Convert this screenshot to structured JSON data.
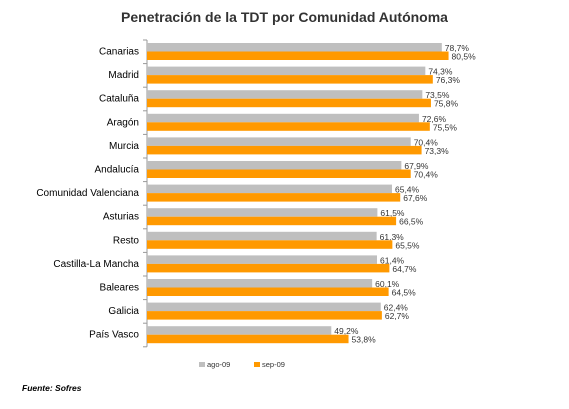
{
  "chart_data": {
    "type": "bar",
    "orientation": "horizontal",
    "title": "Penetración de la TDT por Comunidad Autónoma",
    "categories": [
      "Canarias",
      "Madrid",
      "Cataluña",
      "Aragón",
      "Murcia",
      "Andalucía",
      "Comunidad Valenciana",
      "Asturias",
      "Resto",
      "Castilla-La Mancha",
      "Baleares",
      "Galicia",
      "País Vasco"
    ],
    "series": [
      {
        "name": "ago-09",
        "color": "#bfbfbf",
        "values": [
          78.7,
          74.3,
          73.5,
          72.6,
          70.4,
          67.9,
          65.4,
          61.5,
          61.3,
          61.4,
          60.1,
          62.4,
          49.2
        ],
        "labels": [
          "78,7%",
          "74,3%",
          "73,5%",
          "72,6%",
          "70,4%",
          "67,9%",
          "65,4%",
          "61,5%",
          "61,3%",
          "61,4%",
          "60,1%",
          "62,4%",
          "49,2%"
        ]
      },
      {
        "name": "sep-09",
        "color": "#ff9900",
        "values": [
          80.5,
          76.3,
          75.8,
          75.5,
          73.3,
          70.4,
          67.6,
          66.5,
          65.5,
          64.7,
          64.5,
          62.7,
          53.8
        ],
        "labels": [
          "80,5%",
          "76,3%",
          "75,8%",
          "75,5%",
          "73,3%",
          "70,4%",
          "67,6%",
          "66,5%",
          "65,5%",
          "64,7%",
          "64,5%",
          "62,7%",
          "53,8%"
        ]
      }
    ],
    "xlim": [
      0,
      100
    ],
    "grid": false,
    "legend_position": "bottom"
  },
  "source": "Fuente: Sofres"
}
